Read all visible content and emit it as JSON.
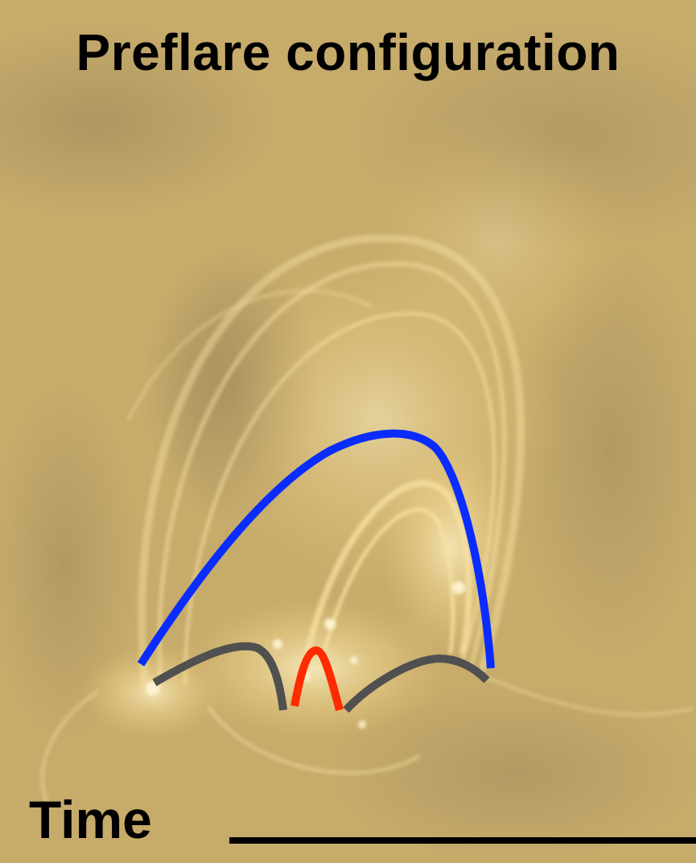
{
  "title": "Preflare configuration",
  "time_label": "Time",
  "colors": {
    "background": "#c8ad6a",
    "overlying_loop": "#0a2cff",
    "side_loops": "#505050",
    "central_loop": "#ff2a00",
    "time_axis": "#000000",
    "text": "#000000"
  },
  "icons": {
    "time_arrow": "horizontal-line"
  }
}
